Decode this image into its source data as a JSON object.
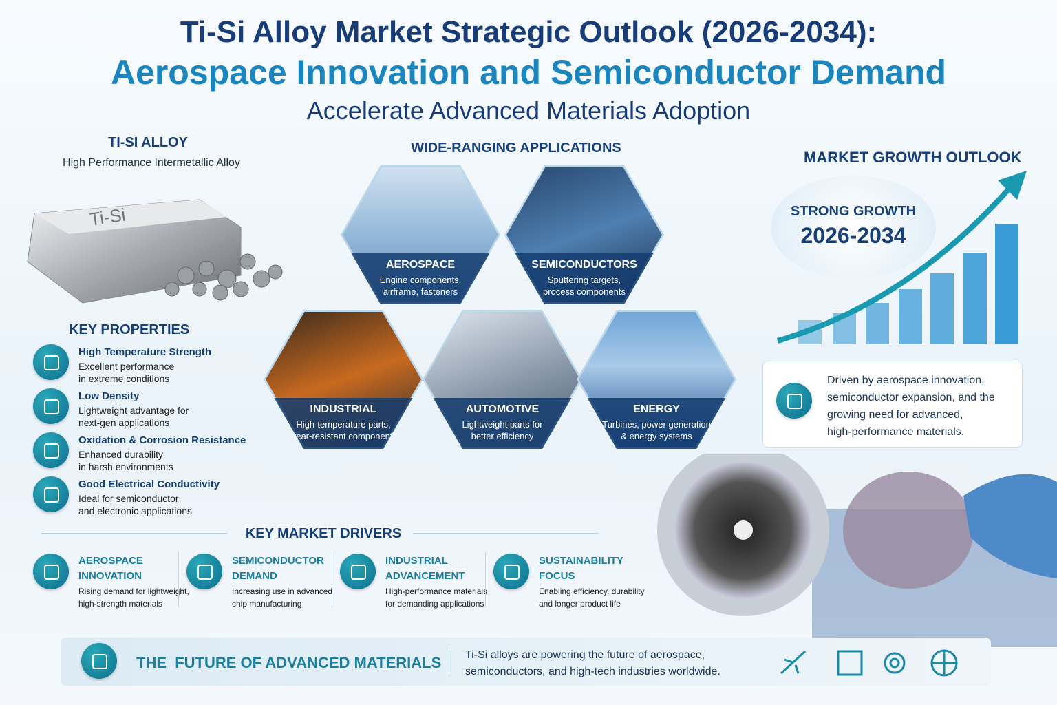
{
  "header": {
    "title_line1": "Ti-Si Alloy Market Strategic Outlook (2026-2034):",
    "title_line2": "Aerospace Innovation and Semiconductor Demand",
    "title_line3": "Accelerate Advanced Materials Adoption"
  },
  "alloy": {
    "title": "TI-SI ALLOY",
    "subtitle": "High Performance Intermetallic Alloy",
    "ingot_label": "Ti-Si"
  },
  "properties": {
    "title": "KEY PROPERTIES",
    "items": [
      {
        "title": "High Temperature Strength",
        "lines": [
          "Excellent performance",
          "in extreme conditions"
        ]
      },
      {
        "title": "Low Density",
        "lines": [
          "Lightweight advantage for",
          "next-gen applications"
        ]
      },
      {
        "title": "Oxidation & Corrosion Resistance",
        "lines": [
          "Enhanced durability",
          "in harsh environments"
        ]
      },
      {
        "title": "Good Electrical Conductivity",
        "lines": [
          "Ideal for semiconductor",
          "and electronic applications"
        ]
      }
    ]
  },
  "applications": {
    "title": "WIDE-RANGING APPLICATIONS",
    "items": [
      {
        "name": "AEROSPACE",
        "lines": [
          "Engine components,",
          "airframe, fasteners"
        ]
      },
      {
        "name": "SEMICONDUCTORS",
        "lines": [
          "Sputtering targets,",
          "process components"
        ]
      },
      {
        "name": "INDUSTRIAL",
        "lines": [
          "High-temperature parts,",
          "wear-resistant components"
        ]
      },
      {
        "name": "AUTOMOTIVE",
        "lines": [
          "Lightweight parts for",
          "better efficiency"
        ]
      },
      {
        "name": "ENERGY",
        "lines": [
          "Turbines, power generation",
          "& energy systems"
        ]
      }
    ]
  },
  "growth": {
    "title": "MARKET GROWTH OUTLOOK",
    "badge_label": "STRONG GROWTH",
    "badge_years": "2026-2034",
    "lines": [
      "Driven by aerospace innovation,",
      "semiconductor expansion, and the",
      "growing need for advanced,",
      "high-performance materials."
    ]
  },
  "drivers": {
    "title": "KEY MARKET DRIVERS",
    "items": [
      {
        "title_lines": [
          "AEROSPACE",
          "INNOVATION"
        ],
        "lines": [
          "Rising demand for lightweight,",
          "high-strength materials"
        ]
      },
      {
        "title_lines": [
          "SEMICONDUCTOR",
          "DEMAND"
        ],
        "lines": [
          "Increasing use in advanced",
          "chip manufacturing"
        ]
      },
      {
        "title_lines": [
          "INDUSTRIAL",
          "ADVANCEMENT"
        ],
        "lines": [
          "High-performance materials",
          "for demanding applications"
        ]
      },
      {
        "title_lines": [
          "SUSTAINABILITY",
          "FOCUS"
        ],
        "lines": [
          "Enabling efficiency, durability",
          "and longer product life"
        ]
      }
    ]
  },
  "footer": {
    "title": "THE  FUTURE OF ADVANCED MATERIALS",
    "lines": [
      "Ti-Si alloys are powering the future of aerospace,",
      "semiconductors, and high-tech industries worldwide."
    ]
  }
}
